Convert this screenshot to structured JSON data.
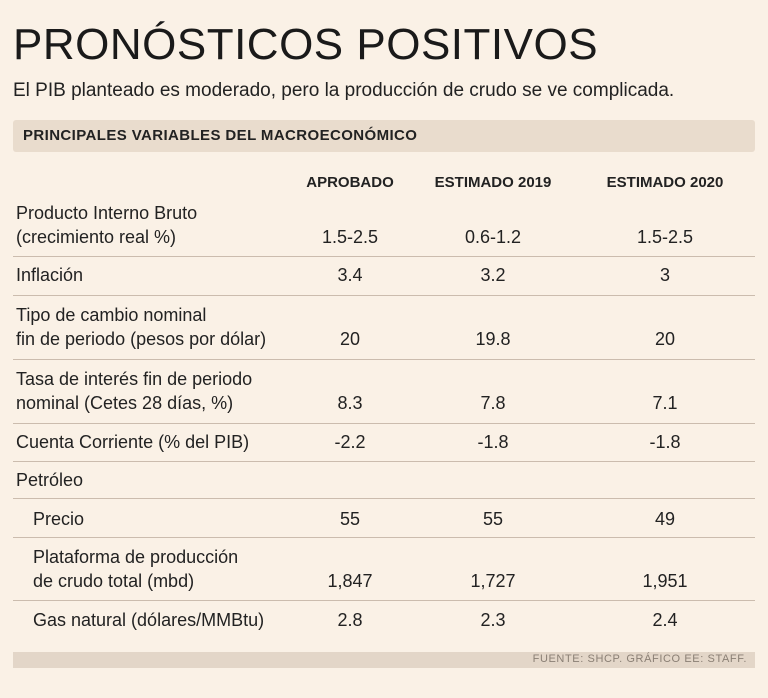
{
  "header": {
    "title": "PRONÓSTICOS POSITIVOS",
    "subtitle": "El PIB planteado es moderado, pero la producción de crudo se ve complicada."
  },
  "section": {
    "title": "PRINCIPALES VARIABLES DEL MACROECONÓMICO"
  },
  "chart_data": {
    "type": "table",
    "title": "PRINCIPALES VARIABLES DEL MACROECONÓMICO",
    "columns": [
      "APROBADO",
      "ESTIMADO 2019",
      "ESTIMADO 2020"
    ],
    "rows": [
      {
        "label_lines": [
          "Producto Interno Bruto",
          "(crecimiento real %)"
        ],
        "values": [
          "1.5-2.5",
          "0.6-1.2",
          "1.5-2.5"
        ]
      },
      {
        "label_lines": [
          "Inflación"
        ],
        "values": [
          "3.4",
          "3.2",
          "3"
        ]
      },
      {
        "label_lines": [
          "Tipo de cambio nominal",
          "fin de periodo (pesos por dólar)"
        ],
        "values": [
          "20",
          "19.8",
          "20"
        ]
      },
      {
        "label_lines": [
          "Tasa de interés fin de periodo",
          "nominal (Cetes 28 días, %)"
        ],
        "values": [
          "8.3",
          "7.8",
          "7.1"
        ]
      },
      {
        "label_lines": [
          "Cuenta Corriente (% del PIB)"
        ],
        "values": [
          "-2.2",
          "-1.8",
          "-1.8"
        ]
      },
      {
        "label_lines": [
          "Petróleo"
        ],
        "values": []
      },
      {
        "label_lines": [
          "Precio"
        ],
        "values": [
          "55",
          "55",
          "49"
        ]
      },
      {
        "label_lines": [
          "Plataforma de producción",
          "de crudo total (mbd)"
        ],
        "values": [
          "1,847",
          "1,727",
          "1,951"
        ]
      },
      {
        "label_lines": [
          "Gas natural (dólares/MMBtu)"
        ],
        "values": [
          "2.8",
          "2.3",
          "2.4"
        ]
      }
    ]
  },
  "footer": {
    "source": "FUENTE: SHCP. GRÁFICO EE: STAFF."
  },
  "colors": {
    "background": "#faf1e6",
    "bar": "#e9dccd",
    "divider": "#cbbcae"
  }
}
